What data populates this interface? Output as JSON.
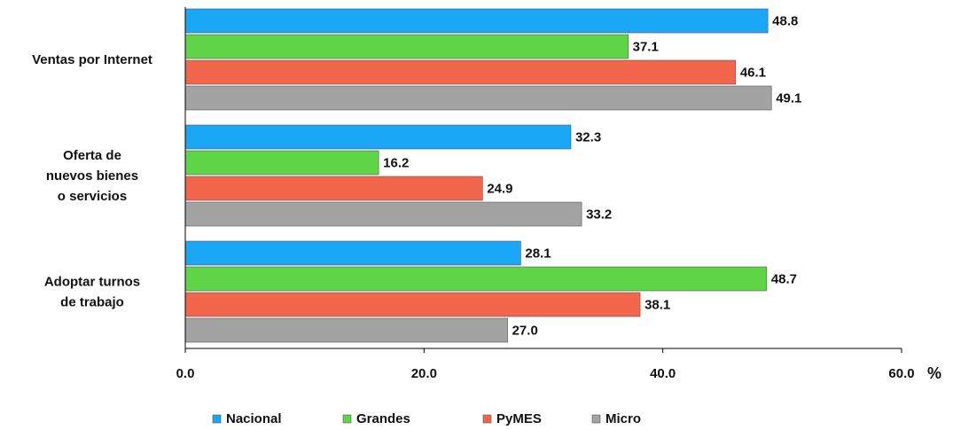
{
  "chart_data": {
    "type": "bar",
    "orientation": "horizontal",
    "categories": [
      [
        "Ventas por Internet"
      ],
      [
        "Oferta de",
        "nuevos bienes",
        "o servicios"
      ],
      [
        "Adoptar turnos",
        "de trabajo"
      ]
    ],
    "series": [
      {
        "name": "Nacional",
        "color": "#1aa7f5",
        "values": [
          48.8,
          32.3,
          28.1
        ]
      },
      {
        "name": "Grandes",
        "color": "#5fd447",
        "values": [
          37.1,
          16.2,
          48.7
        ]
      },
      {
        "name": "PyMES",
        "color": "#f2674c",
        "values": [
          46.1,
          24.9,
          38.1
        ]
      },
      {
        "name": "Micro",
        "color": "#a3a3a3",
        "values": [
          49.1,
          33.2,
          27.0
        ]
      }
    ],
    "xlim": [
      0,
      60
    ],
    "xticks": [
      "0.0",
      "20.0",
      "40.0",
      "60.0"
    ],
    "unit": "%",
    "grid": false,
    "legend_position": "bottom"
  }
}
